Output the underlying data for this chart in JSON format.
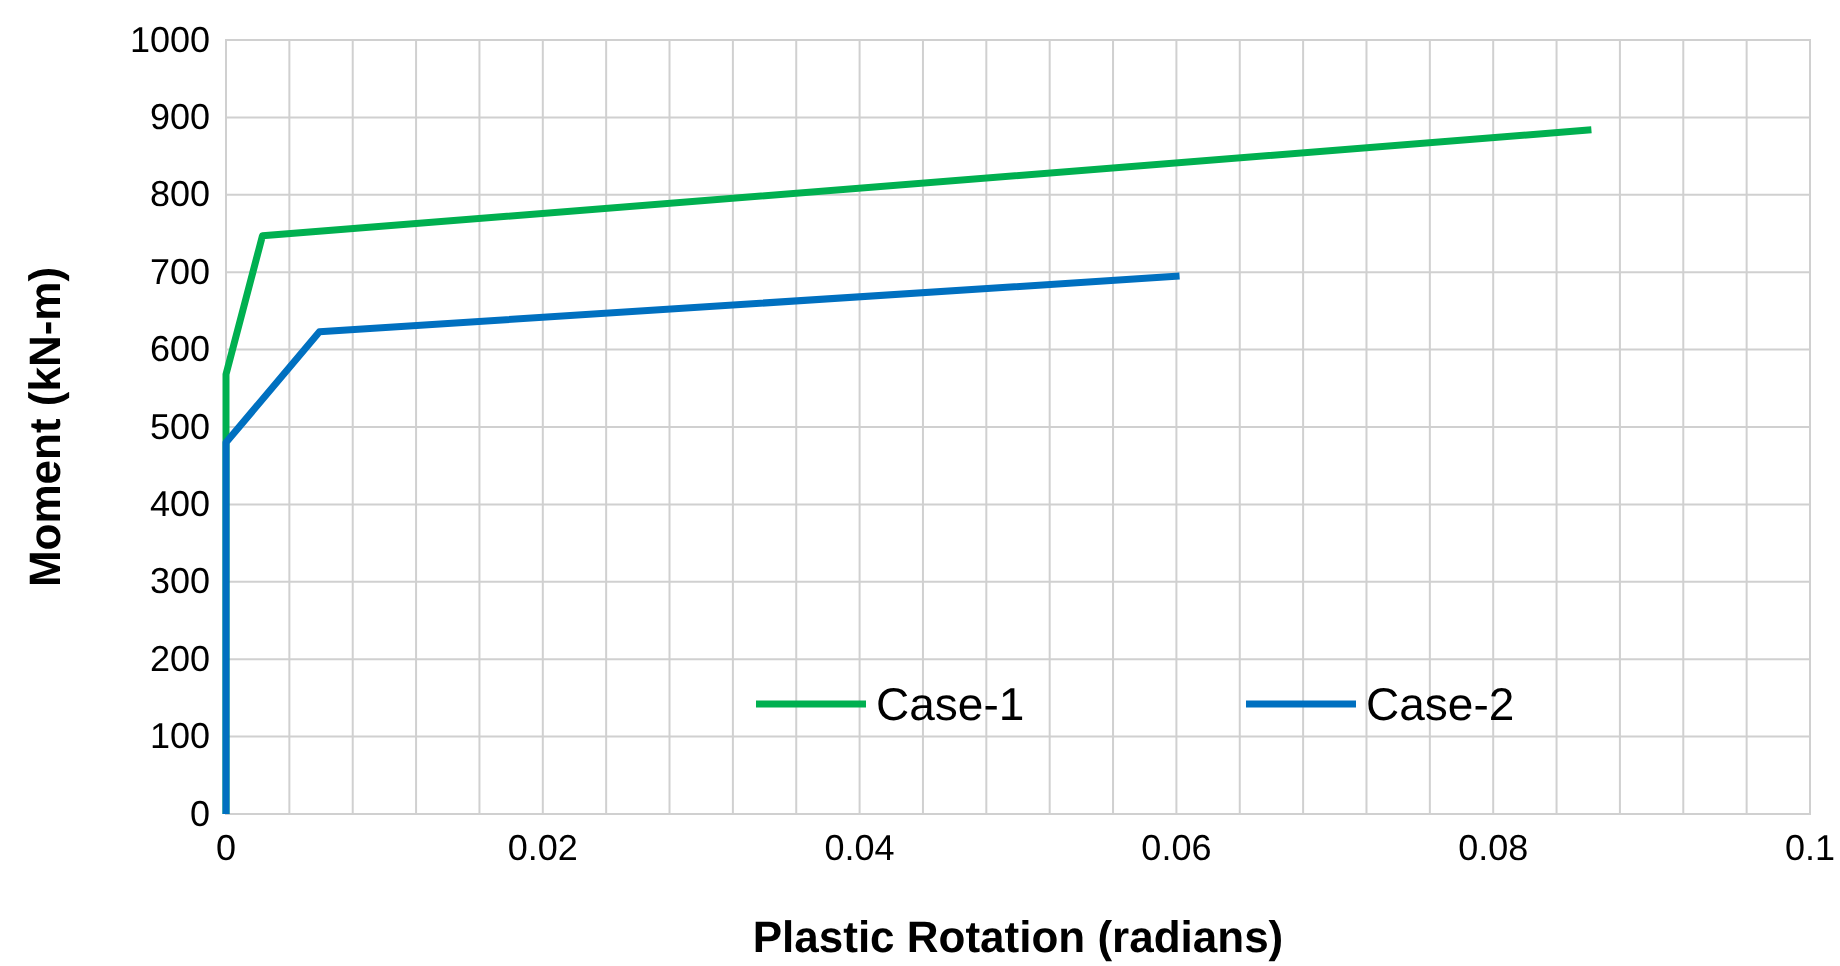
{
  "chart_data": {
    "type": "line",
    "xlabel": "Plastic Rotation (radians)",
    "ylabel": "Moment (kN-m)",
    "xlim": [
      0,
      0.1
    ],
    "ylim": [
      0,
      1000
    ],
    "xticks": [
      0,
      {
        "value": 0.004,
        "label": null
      },
      {
        "value": 0.008,
        "label": null
      },
      {
        "value": 0.012,
        "label": null
      },
      {
        "value": 0.016,
        "label": null
      },
      0.02,
      {
        "value": 0.024,
        "label": null
      },
      {
        "value": 0.028,
        "label": null
      },
      {
        "value": 0.032,
        "label": null
      },
      {
        "value": 0.036,
        "label": null
      },
      0.04,
      {
        "value": 0.044,
        "label": null
      },
      {
        "value": 0.048,
        "label": null
      },
      {
        "value": 0.052,
        "label": null
      },
      {
        "value": 0.056,
        "label": null
      },
      0.06,
      {
        "value": 0.064,
        "label": null
      },
      {
        "value": 0.068,
        "label": null
      },
      {
        "value": 0.072,
        "label": null
      },
      {
        "value": 0.076,
        "label": null
      },
      0.08,
      {
        "value": 0.084,
        "label": null
      },
      {
        "value": 0.088,
        "label": null
      },
      {
        "value": 0.092,
        "label": null
      },
      {
        "value": 0.096,
        "label": null
      },
      0.1
    ],
    "yticks": [
      0,
      100,
      200,
      300,
      400,
      500,
      600,
      700,
      800,
      900,
      1000
    ],
    "grid": true,
    "legend": "bottom",
    "marker": "none",
    "line_style": "solid",
    "series": [
      {
        "name": "Case-1",
        "color": "#00b050",
        "x": [
          0,
          0,
          0.0023,
          0.0862
        ],
        "values": [
          0,
          568,
          747,
          884
        ]
      },
      {
        "name": "Case-2",
        "color": "#0070c0",
        "x": [
          0,
          0,
          0.0059,
          0.0602
        ],
        "values": [
          0,
          480,
          623,
          695
        ]
      }
    ]
  }
}
